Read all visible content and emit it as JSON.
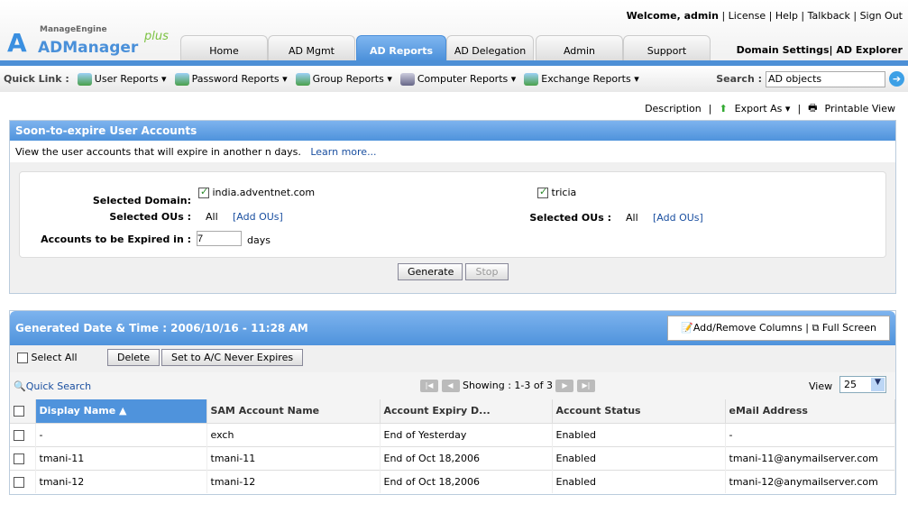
{
  "header": {
    "welcome": "Welcome, admin",
    "links": [
      "License",
      "Help",
      "Talkback",
      "Sign Out"
    ],
    "logo_brand": "ManageEngine",
    "logo_product": "ADManager",
    "logo_plus": "plus",
    "domain_settings": "Domain Settings|",
    "ad_explorer": "AD Explorer"
  },
  "tabs": [
    {
      "label": "Home"
    },
    {
      "label": "AD Mgmt"
    },
    {
      "label": "AD Reports",
      "active": true
    },
    {
      "label": "AD Delegation"
    },
    {
      "label": "Admin"
    },
    {
      "label": "Support"
    }
  ],
  "quicklinks": {
    "label": "Quick Link :",
    "items": [
      "User Reports ▾",
      "Password Reports ▾",
      "Group Reports ▾",
      "Computer Reports ▾",
      "Exchange Reports ▾"
    ]
  },
  "search": {
    "label": "Search :",
    "value": "AD objects"
  },
  "actions": {
    "description": "Description",
    "export": "Export As ▾",
    "printable": "Printable View"
  },
  "report": {
    "title": "Soon-to-expire User Accounts",
    "description": "View the user accounts that will expire in another n days.",
    "learn_more": "Learn more...",
    "selected_domain_label": "Selected Domain:",
    "domain1": "india.adventnet.com",
    "domain2": "tricia",
    "selected_ous_label": "Selected OUs :",
    "ous_value": "All",
    "add_ous": "[Add OUs]",
    "expire_label": "Accounts to be Expired in :",
    "expire_value": "7",
    "days": "days",
    "generate": "Generate",
    "stop": "Stop"
  },
  "results": {
    "generated": "Generated Date & Time : 2006/10/16 - 11:28 AM",
    "add_remove": "Add/Remove Columns",
    "full_screen": "Full Screen",
    "select_all": "Select All",
    "delete": "Delete",
    "never_expires": "Set to A/C Never Expires",
    "quick_search": "Quick Search",
    "showing": "Showing : 1-3 of 3",
    "view_label": "View",
    "view_value": "25",
    "columns": [
      "Display Name ▲",
      "SAM Account Name",
      "Account Expiry D...",
      "Account Status",
      "eMail Address"
    ],
    "rows": [
      [
        "-",
        "exch",
        "End of Yesterday",
        "Enabled",
        "-"
      ],
      [
        "tmani-11",
        "tmani-11",
        "End of Oct 18,2006",
        "Enabled",
        "tmani-11@anymailserver.com"
      ],
      [
        "tmani-12",
        "tmani-12",
        "End of Oct 18,2006",
        "Enabled",
        "tmani-12@anymailserver.com"
      ]
    ]
  }
}
